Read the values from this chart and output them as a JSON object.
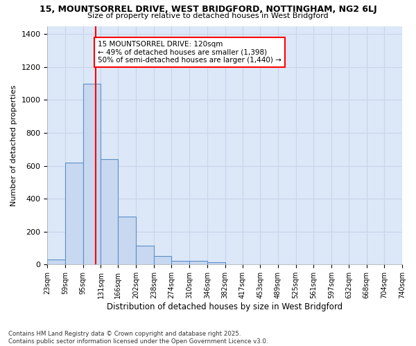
{
  "title1": "15, MOUNTSORREL DRIVE, WEST BRIDGFORD, NOTTINGHAM, NG2 6LJ",
  "title2": "Size of property relative to detached houses in West Bridgford",
  "xlabel": "Distribution of detached houses by size in West Bridgford",
  "ylabel": "Number of detached properties",
  "bin_edges": [
    23,
    59,
    95,
    131,
    166,
    202,
    238,
    274,
    310,
    346,
    382,
    417,
    453,
    489,
    525,
    561,
    597,
    632,
    668,
    704,
    740
  ],
  "bar_heights": [
    30,
    620,
    1100,
    640,
    290,
    115,
    50,
    22,
    22,
    13,
    0,
    0,
    0,
    0,
    0,
    0,
    0,
    0,
    0,
    0
  ],
  "bar_color": "#c8d8f0",
  "bar_edge_color": "#5b8fc9",
  "grid_color": "#c8d4e8",
  "plot_bg_color": "#dce8f8",
  "fig_bg_color": "#ffffff",
  "red_line_x": 120,
  "ylim": [
    0,
    1450
  ],
  "yticks": [
    0,
    200,
    400,
    600,
    800,
    1000,
    1200,
    1400
  ],
  "annotation_title": "15 MOUNTSORREL DRIVE: 120sqm",
  "annotation_line1": "← 49% of detached houses are smaller (1,398)",
  "annotation_line2": "50% of semi-detached houses are larger (1,440) →",
  "footnote1": "Contains HM Land Registry data © Crown copyright and database right 2025.",
  "footnote2": "Contains public sector information licensed under the Open Government Licence v3.0."
}
